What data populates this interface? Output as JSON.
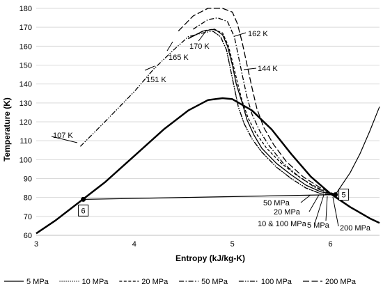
{
  "chart_data": {
    "type": "line",
    "xlabel": "Entropy (kJ/kg-K)",
    "ylabel": "Temperature (K)",
    "xlim": [
      3,
      6.5
    ],
    "ylim": [
      60,
      180
    ],
    "xticks": [
      "3",
      "4",
      "5",
      "6"
    ],
    "yticks": [
      "60",
      "70",
      "80",
      "90",
      "100",
      "110",
      "120",
      "130",
      "140",
      "150",
      "160",
      "170",
      "180"
    ],
    "grid": "horizontal",
    "legend_position": "bottom",
    "series": [
      {
        "name": "5 MPa",
        "dash": "solid",
        "points": [
          [
            4.55,
            164
          ],
          [
            4.7,
            168
          ],
          [
            4.82,
            169
          ],
          [
            4.9,
            166
          ],
          [
            4.95,
            160
          ],
          [
            5.0,
            150
          ],
          [
            5.04,
            140
          ],
          [
            5.1,
            130
          ],
          [
            5.15,
            121
          ],
          [
            5.22,
            113
          ],
          [
            5.3,
            106
          ],
          [
            5.45,
            98
          ],
          [
            5.6,
            92
          ],
          [
            5.75,
            86.5
          ],
          [
            5.9,
            83
          ],
          [
            6.05,
            81.5
          ]
        ]
      },
      {
        "name": "10 MPa",
        "dash": "dotted",
        "points": [
          [
            4.8,
            168
          ],
          [
            4.88,
            165
          ],
          [
            4.94,
            158
          ],
          [
            4.98,
            148
          ],
          [
            5.02,
            138
          ],
          [
            5.06,
            128
          ],
          [
            5.12,
            119
          ],
          [
            5.2,
            111
          ],
          [
            5.3,
            104
          ],
          [
            5.45,
            96
          ],
          [
            5.6,
            90
          ],
          [
            5.75,
            85
          ],
          [
            5.9,
            82
          ],
          [
            6.05,
            81.2
          ]
        ]
      },
      {
        "name": "20 MPa",
        "dash": "dashed",
        "points": [
          [
            4.55,
            164
          ],
          [
            4.7,
            168
          ],
          [
            4.8,
            169
          ],
          [
            4.9,
            167
          ],
          [
            4.96,
            160
          ],
          [
            5.0,
            152
          ],
          [
            5.05,
            141
          ],
          [
            5.1,
            131
          ],
          [
            5.16,
            122
          ],
          [
            5.24,
            114
          ],
          [
            5.35,
            106
          ],
          [
            5.5,
            98
          ],
          [
            5.65,
            92
          ],
          [
            5.8,
            87
          ],
          [
            5.95,
            83
          ],
          [
            6.05,
            81.5
          ]
        ]
      },
      {
        "name": "50 MPa",
        "dash": "dashdot",
        "points": [
          [
            4.6,
            169
          ],
          [
            4.75,
            174
          ],
          [
            4.85,
            175
          ],
          [
            4.95,
            173
          ],
          [
            5.02,
            165
          ],
          [
            5.06,
            155
          ],
          [
            5.1,
            145
          ],
          [
            5.15,
            133
          ],
          [
            5.2,
            124
          ],
          [
            5.28,
            115
          ],
          [
            5.38,
            107
          ],
          [
            5.52,
            98
          ],
          [
            5.68,
            91
          ],
          [
            5.85,
            85
          ],
          [
            6.0,
            82
          ],
          [
            6.05,
            81.5
          ]
        ]
      },
      {
        "name": "100 MPa",
        "dash": "dashdotdot",
        "points": [
          [
            3.45,
            107
          ],
          [
            3.7,
            120
          ],
          [
            4.0,
            136
          ],
          [
            4.2,
            148
          ],
          [
            4.4,
            158
          ],
          [
            4.55,
            165
          ],
          [
            4.7,
            167
          ],
          [
            4.8,
            168
          ],
          [
            4.88,
            165
          ],
          [
            4.94,
            158
          ],
          [
            4.98,
            148
          ],
          [
            5.02,
            138
          ],
          [
            5.06,
            128
          ],
          [
            5.12,
            119
          ],
          [
            5.2,
            111
          ],
          [
            5.3,
            104
          ],
          [
            5.45,
            96
          ],
          [
            5.6,
            90
          ],
          [
            5.75,
            85
          ],
          [
            5.9,
            82
          ],
          [
            6.05,
            81.2
          ]
        ]
      },
      {
        "name": "200 MPa",
        "dash": "longdash",
        "points": [
          [
            4.45,
            168
          ],
          [
            4.6,
            176
          ],
          [
            4.75,
            180
          ],
          [
            4.9,
            180
          ],
          [
            5.0,
            178
          ],
          [
            5.05,
            172
          ],
          [
            5.1,
            162
          ],
          [
            5.15,
            150
          ],
          [
            5.2,
            138
          ],
          [
            5.25,
            127
          ],
          [
            5.32,
            117
          ],
          [
            5.42,
            108
          ],
          [
            5.55,
            99
          ],
          [
            5.72,
            91
          ],
          [
            5.9,
            85
          ],
          [
            6.05,
            81.5
          ]
        ]
      }
    ],
    "saturation_dome": {
      "dash": "solid",
      "points": [
        [
          3.0,
          61
        ],
        [
          3.2,
          68
        ],
        [
          3.45,
          78
        ],
        [
          3.7,
          88
        ],
        [
          4.0,
          102
        ],
        [
          4.3,
          116
        ],
        [
          4.55,
          126
        ],
        [
          4.75,
          131.5
        ],
        [
          4.9,
          132.5
        ],
        [
          5.0,
          132
        ],
        [
          5.2,
          126
        ],
        [
          5.4,
          116
        ],
        [
          5.6,
          103
        ],
        [
          5.8,
          91
        ],
        [
          6.0,
          82
        ],
        [
          6.2,
          75
        ],
        [
          6.4,
          69
        ],
        [
          6.5,
          66.5
        ]
      ]
    },
    "isobar_5mpa_vapor": {
      "dash": "solid",
      "points": [
        [
          6.05,
          81.5
        ],
        [
          6.2,
          93
        ],
        [
          6.3,
          103
        ],
        [
          6.4,
          115
        ],
        [
          6.5,
          128
        ]
      ]
    },
    "process_line_6_5": {
      "dash": "solid",
      "points": [
        [
          3.48,
          79
        ],
        [
          6.05,
          81.5
        ]
      ]
    },
    "state_points": [
      {
        "label": "6",
        "x": 3.48,
        "y": 79
      },
      {
        "label": "5",
        "x": 6.05,
        "y": 81.5
      }
    ],
    "annotations": {
      "isotherms": [
        "107 K",
        "151 K",
        "165 K",
        "170 K",
        "162 K",
        "144 K"
      ],
      "pressures": [
        "50 MPa",
        "20 MPa",
        "10 & 100 MPa",
        "5 MPa",
        "200 MPa"
      ]
    }
  }
}
